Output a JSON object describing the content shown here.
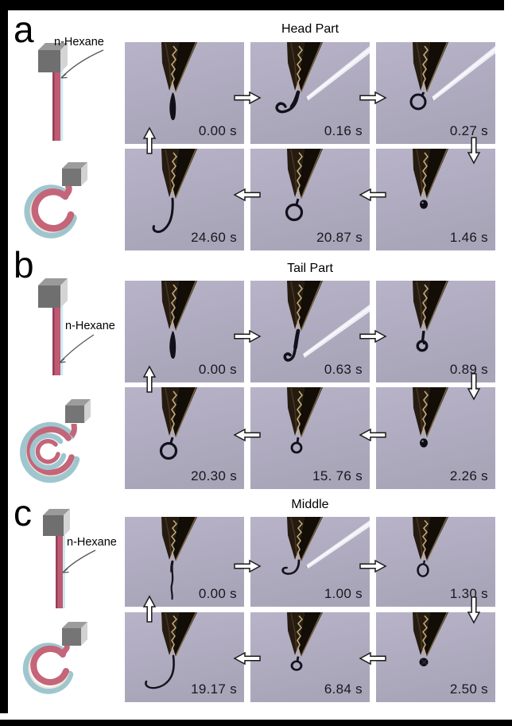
{
  "figure": {
    "description_labels": {
      "solvent": "n-Hexane"
    },
    "panels": [
      {
        "label": "a",
        "title": "Head Part",
        "solvent_label": "n-Hexane",
        "frames": [
          {
            "time": "0.00 s"
          },
          {
            "time": "0.16 s"
          },
          {
            "time": "0.27 s"
          },
          {
            "time": "24.60 s"
          },
          {
            "time": "20.87 s"
          },
          {
            "time": "1.46 s"
          }
        ]
      },
      {
        "label": "b",
        "title": "Tail Part",
        "solvent_label": "n-Hexane",
        "frames": [
          {
            "time": "0.00 s"
          },
          {
            "time": "0.63 s"
          },
          {
            "time": "0.89 s"
          },
          {
            "time": "20.30 s"
          },
          {
            "time": "15. 76 s"
          },
          {
            "time": "2.26 s"
          }
        ]
      },
      {
        "label": "c",
        "title": "Middle",
        "solvent_label": "n-Hexane",
        "frames": [
          {
            "time": "0.00 s"
          },
          {
            "time": "1.00 s"
          },
          {
            "time": "1.30 s"
          },
          {
            "time": "19.17 s"
          },
          {
            "time": "6.84 s"
          },
          {
            "time": "2.50 s"
          }
        ]
      }
    ],
    "colors": {
      "photo_background": "#b1acc0",
      "ribbon_pink": "#c05a72",
      "ribbon_blue": "#cdeaf2",
      "coil_teal": "#9fc6ce",
      "block_gray": "#717171",
      "matte_black": "#000000"
    }
  }
}
